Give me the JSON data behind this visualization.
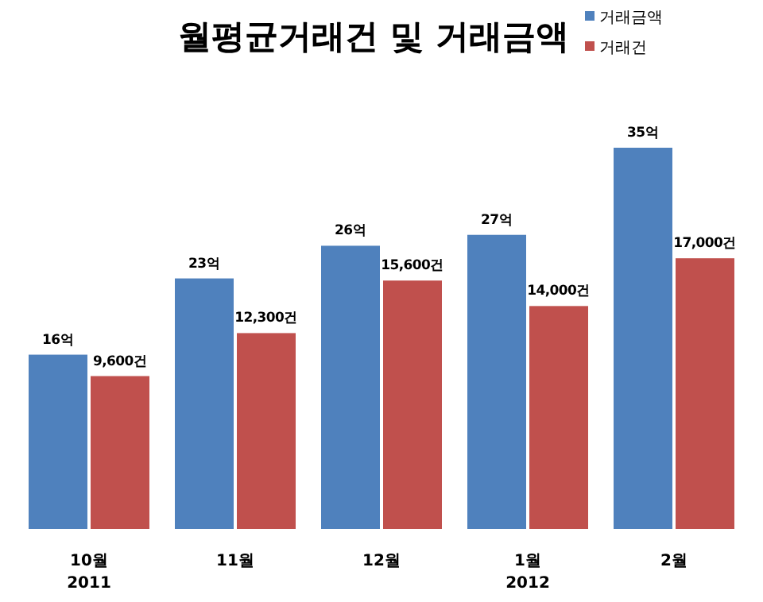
{
  "chart_data": {
    "type": "bar",
    "title": "월평균거래건 및 거래금액",
    "categories": [
      "10월\n2011",
      "11월",
      "12월",
      "1월\n2012",
      "2월"
    ],
    "series": [
      {
        "name": "거래금액",
        "color": "#4f81bd",
        "values": [
          16,
          23,
          26,
          27,
          35
        ],
        "value_labels": [
          "16억",
          "23억",
          "26억",
          "27억",
          "35억"
        ]
      },
      {
        "name": "거래건",
        "color": "#c0504d",
        "axis": "y2",
        "values": [
          9600,
          12300,
          15600,
          14000,
          17000
        ],
        "value_labels": [
          "9,600건",
          "12,300건",
          "15,600건",
          "14,000건",
          "17,000건"
        ]
      }
    ],
    "legend": "top right"
  }
}
